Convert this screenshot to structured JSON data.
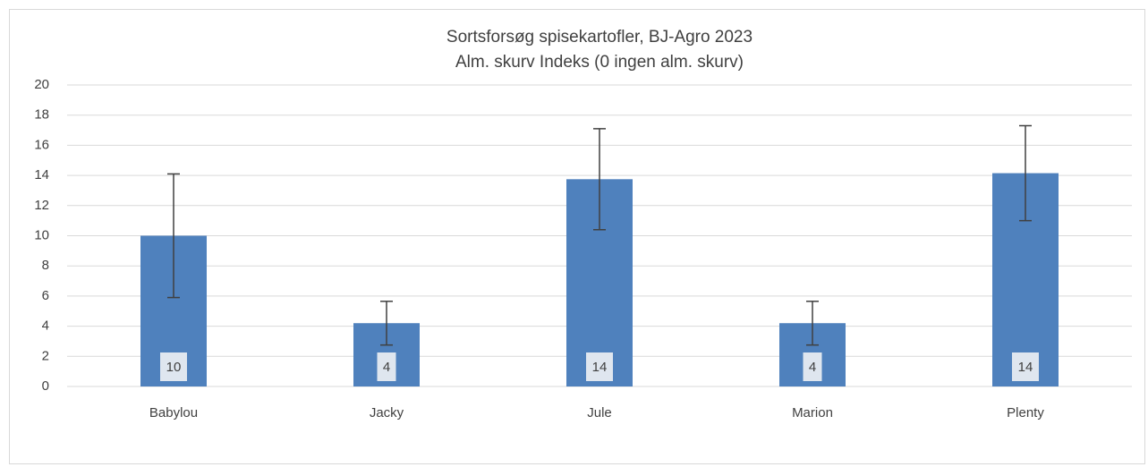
{
  "chart_data": {
    "type": "bar",
    "title": "Sortsforsøg spisekartofler, BJ-Agro 2023",
    "subtitle": "Alm. skurv Indeks (0 ingen alm. skurv)",
    "categories": [
      "Babylou",
      "Jacky",
      "Jule",
      "Marion",
      "Plenty"
    ],
    "values": [
      10,
      4.2,
      13.75,
      4.2,
      14.15
    ],
    "value_labels": [
      "10",
      "4",
      "14",
      "4",
      "14"
    ],
    "errors": [
      4.1,
      1.45,
      3.35,
      1.45,
      3.15
    ],
    "color": "#4f81bd",
    "ylim": [
      0,
      20
    ],
    "yticks": [
      0,
      2,
      4,
      6,
      8,
      10,
      12,
      14,
      16,
      18,
      20
    ],
    "grid": true
  }
}
